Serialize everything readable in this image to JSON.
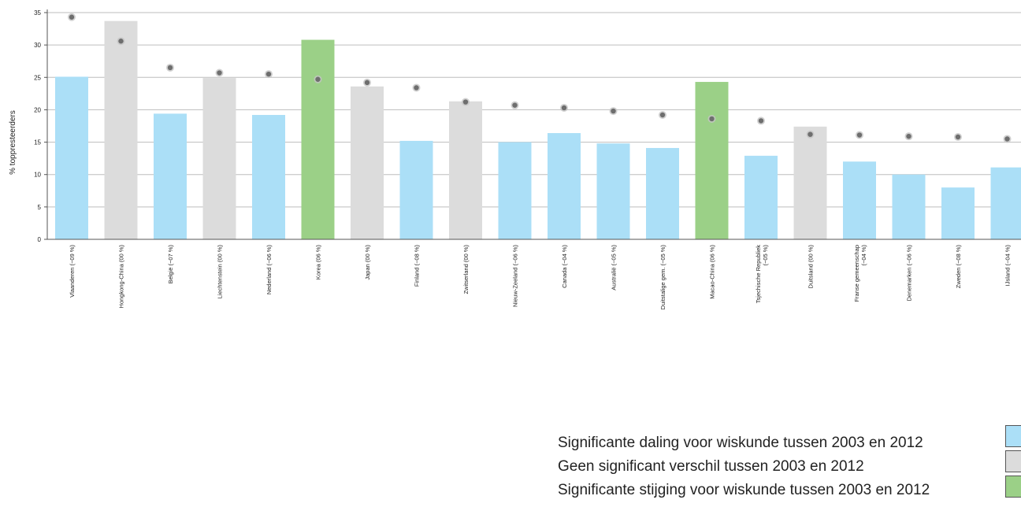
{
  "chart_data": {
    "type": "bar",
    "ylabel": "% toppresteerders",
    "ylim": [
      0,
      35
    ],
    "yticks": [
      0,
      5,
      10,
      15,
      20,
      25,
      30,
      35
    ],
    "grid": true,
    "categories": [
      "Vlaanderen   (−09 %)",
      "Hongkong-China   (00 %)",
      "België   (−07 %)",
      "Liechtenstein   (00 %)",
      "Nederland   (−06 %)",
      "Korea   (06 %)",
      "Japan   (00 %)",
      "Finland   (−08 %)",
      "Zwitserland   (00 %)",
      "Nieuw-Zeeland   (−06 %)",
      "Canada   (−04 %)",
      "Australië   (−05 %)",
      "Duitstalige gem.   (−05 %)",
      "Macao-China   (06 %)",
      "Tsjechische Republiek\n(−05 %)",
      "Duitsland   (00 %)",
      "Franse gemeenschap\n(−04 %)",
      "Denemarken   (−06 %)",
      "Zweden   (−08 %)",
      "IJsland   (−04 %)"
    ],
    "series": [
      {
        "values": [
          25.1,
          33.7,
          19.4,
          24.9,
          19.2,
          30.8,
          23.6,
          15.2,
          21.3,
          15.0,
          16.4,
          14.8,
          14.1,
          24.3,
          12.9,
          17.4,
          12.0,
          10.0,
          8.0,
          11.1
        ],
        "trend": [
          "down",
          "none",
          "down",
          "none",
          "down",
          "up",
          "none",
          "down",
          "none",
          "down",
          "down",
          "down",
          "down",
          "up",
          "down",
          "none",
          "down",
          "down",
          "down",
          "down"
        ]
      },
      {
        "values": [
          34.3,
          30.6,
          26.5,
          25.7,
          25.5,
          24.7,
          24.2,
          23.4,
          21.2,
          20.7,
          20.3,
          19.8,
          19.2,
          18.6,
          18.3,
          16.2,
          16.1,
          15.9,
          15.8,
          15.5
        ]
      }
    ],
    "colors": {
      "down": "#abdff7",
      "none": "#dcdcdc",
      "up": "#9bd087",
      "marker": "#6e6e6e",
      "grid": "#bdbdbd",
      "axis": "#555555"
    }
  },
  "legend": {
    "items": [
      {
        "label": "Significante daling voor wiskunde tussen 2003 en 2012",
        "color": "#abdff7"
      },
      {
        "label": "Geen significant verschil tussen 2003 en 2012",
        "color": "#dcdcdc"
      },
      {
        "label": "Significante stijging voor wiskunde tussen 2003 en 2012",
        "color": "#9bd087"
      }
    ]
  }
}
